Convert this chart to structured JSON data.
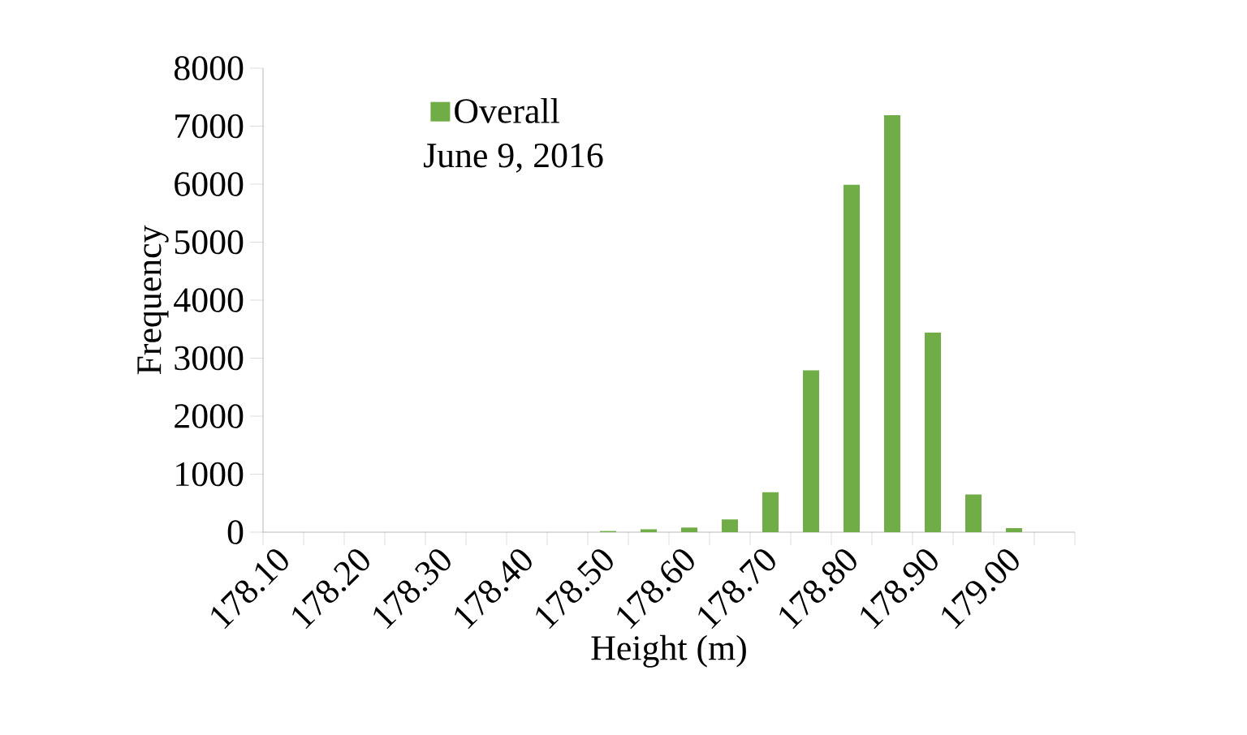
{
  "chart_data": {
    "type": "bar",
    "xlabel": "Height (m)",
    "ylabel": "Frequency",
    "categories": [
      "178.10",
      null,
      "178.20",
      null,
      "178.30",
      null,
      "178.40",
      null,
      "178.50",
      null,
      "178.60",
      null,
      "178.70",
      null,
      "178.80",
      null,
      "178.90",
      null,
      "179.00",
      null
    ],
    "series": [
      {
        "name": "Overall",
        "color": "#70ad47",
        "values": [
          0,
          0,
          0,
          0,
          0,
          0,
          0,
          0,
          20,
          50,
          80,
          220,
          690,
          2790,
          5990,
          7190,
          3440,
          650,
          70,
          0
        ]
      }
    ],
    "ylim": [
      0,
      8000
    ],
    "yticks": [
      0,
      1000,
      2000,
      3000,
      4000,
      5000,
      6000,
      7000,
      8000
    ],
    "legend": "top left",
    "grid": false,
    "annotations": [
      "June 9, 2016"
    ]
  }
}
